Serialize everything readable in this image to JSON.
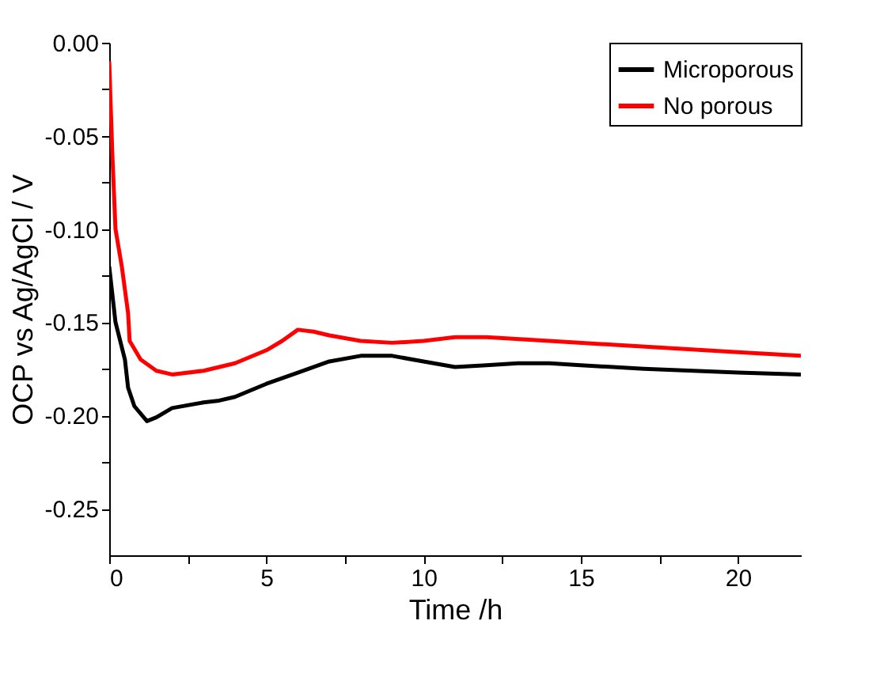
{
  "chart_data": {
    "type": "line",
    "xlabel": "Time /h",
    "ylabel": "OCP vs Ag/AgCl / V",
    "xlim": [
      0,
      22
    ],
    "xticks": [
      0,
      {
        "value": 2.5,
        "label": null
      },
      5,
      {
        "value": 7.5,
        "label": null
      },
      10,
      {
        "value": 12.5,
        "label": null
      },
      15,
      {
        "value": 17.5,
        "label": null
      },
      20
    ],
    "ylim": [
      -0.275,
      0.0
    ],
    "yticks": [
      {
        "value": -0.25,
        "label": "-0.25"
      },
      {
        "value": -0.225,
        "label": null
      },
      {
        "value": -0.2,
        "label": "-0.20"
      },
      {
        "value": -0.175,
        "label": null
      },
      {
        "value": -0.15,
        "label": "-0.15"
      },
      {
        "value": -0.125,
        "label": null
      },
      {
        "value": -0.1,
        "label": "-0.10"
      },
      {
        "value": -0.075,
        "label": null
      },
      {
        "value": -0.05,
        "label": "-0.05"
      },
      {
        "value": -0.025,
        "label": null
      },
      {
        "value": 0.0,
        "label": "0.00"
      }
    ],
    "grid": false,
    "legend": "top right",
    "marker": "none",
    "line_style": "solid",
    "series": [
      {
        "name": "Microporous",
        "color": "#000000",
        "x": [
          0,
          0.2,
          0.5,
          0.6,
          0.8,
          1.2,
          1.5,
          2,
          3,
          3.5,
          4,
          5,
          6,
          7,
          8,
          9,
          10,
          11,
          12,
          13,
          14,
          15,
          17,
          20,
          22
        ],
        "values": [
          -0.12,
          -0.15,
          -0.17,
          -0.185,
          -0.195,
          -0.203,
          -0.201,
          -0.196,
          -0.193,
          -0.192,
          -0.19,
          -0.183,
          -0.177,
          -0.171,
          -0.168,
          -0.168,
          -0.171,
          -0.174,
          -0.173,
          -0.172,
          -0.172,
          -0.173,
          -0.175,
          -0.177,
          -0.178
        ]
      },
      {
        "name": "No porous",
        "color": "#ff0000",
        "x": [
          0,
          0.1,
          0.2,
          0.4,
          0.6,
          0.65,
          1,
          1.5,
          2,
          3,
          4,
          5,
          5.5,
          6,
          6.5,
          7,
          8,
          9,
          10,
          11,
          12,
          14,
          16,
          18,
          20,
          22
        ],
        "values": [
          -0.01,
          -0.06,
          -0.1,
          -0.12,
          -0.145,
          -0.16,
          -0.17,
          -0.176,
          -0.178,
          -0.176,
          -0.172,
          -0.165,
          -0.16,
          -0.154,
          -0.155,
          -0.157,
          -0.16,
          -0.161,
          -0.16,
          -0.158,
          -0.158,
          -0.16,
          -0.162,
          -0.164,
          -0.166,
          -0.168
        ]
      }
    ]
  }
}
